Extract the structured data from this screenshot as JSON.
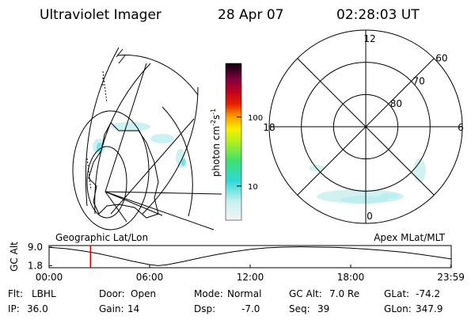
{
  "header": {
    "title": "Ultraviolet Imager",
    "date": "28 Apr 07",
    "time": "02:28:03 UT"
  },
  "colorbar": {
    "label": [
      "photon cm",
      "-2",
      "s",
      "-1"
    ],
    "scale": "log",
    "lim": [
      3.2,
      600
    ],
    "ticks": [
      10,
      100
    ]
  },
  "polar": {
    "mlt_labels": [
      12,
      6,
      0,
      18
    ],
    "lat_lim": [
      90,
      60
    ],
    "lat_rings": [
      80,
      70,
      60
    ]
  },
  "altitude": {
    "ylabel": "GC Alt",
    "left_label": "Geographic Lat/Lon",
    "right_label": "Apex MLat/MLT",
    "xlim": [
      0,
      24
    ],
    "xticks": [
      {
        "value": 0,
        "label": "00:00"
      },
      {
        "value": 6,
        "label": "06:00"
      },
      {
        "value": 12,
        "label": "12:00"
      },
      {
        "value": 18,
        "label": "18:00"
      },
      {
        "value": 23.98,
        "label": "23:59"
      }
    ],
    "ylim": [
      1.0,
      9.6
    ],
    "yticks": [
      {
        "value": 9,
        "label": "9.0"
      },
      1.8
    ],
    "x": [
      0,
      1,
      2,
      3,
      4,
      5,
      6,
      6.5,
      7,
      8,
      9,
      10,
      11,
      12,
      13,
      14,
      15,
      16,
      17,
      18,
      19,
      20,
      21,
      22,
      23,
      23.98
    ],
    "values": [
      8.9,
      8.4,
      7.5,
      6.4,
      5.0,
      3.5,
      2.2,
      1.8,
      2.1,
      3.4,
      4.8,
      6.1,
      7.2,
      8.1,
      8.7,
      9.0,
      9.1,
      9.0,
      8.9,
      8.6,
      8.2,
      7.7,
      7.1,
      6.3,
      5.4,
      4.4
    ],
    "marker_time": 2.47,
    "marker_color": "#e00000"
  },
  "footer": [
    [
      {
        "label": "Flt:",
        "value": "LBHL"
      },
      {
        "label": "Door:",
        "value": "Open"
      },
      {
        "label": "Mode:",
        "value": "Normal"
      },
      {
        "label": "GC Alt:",
        "value": "7.0 Re"
      },
      {
        "label": "GLat:",
        "value": "-74.2"
      }
    ],
    [
      {
        "label": "IP:",
        "value": "36.0"
      },
      {
        "label": "Gain:",
        "value": "14"
      },
      {
        "label": "Dsp:",
        "value": "-7.0"
      },
      {
        "label": "Seq:",
        "value": "39"
      },
      {
        "label": "GLon:",
        "value": "347.9"
      }
    ]
  ]
}
